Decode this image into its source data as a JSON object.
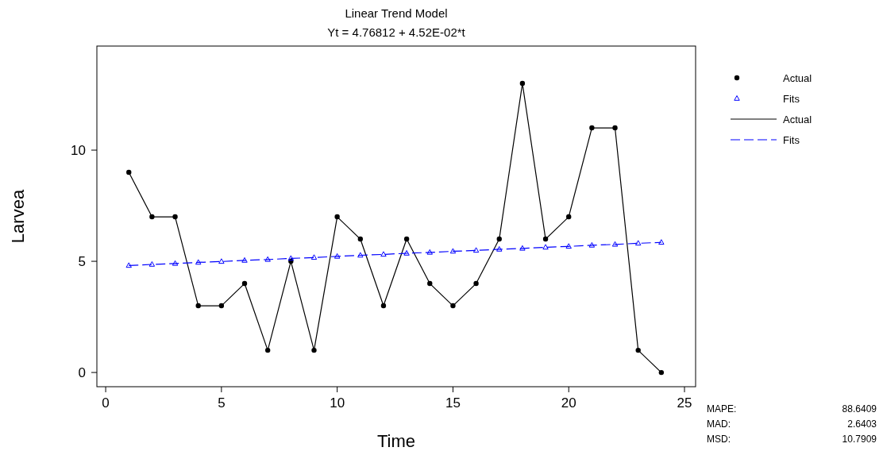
{
  "chart_data": {
    "type": "line",
    "title": "Linear Trend Model",
    "subtitle": "Yt = 4.76812 + 4.52E-02*t",
    "xlabel": "Time",
    "ylabel": "Larvea",
    "x": [
      1,
      2,
      3,
      4,
      5,
      6,
      7,
      8,
      9,
      10,
      11,
      12,
      13,
      14,
      15,
      16,
      17,
      18,
      19,
      20,
      21,
      22,
      23,
      24
    ],
    "series": [
      {
        "name": "Actual",
        "color": "#000000",
        "marker": "circle",
        "line_style": "solid",
        "values": [
          9,
          7,
          7,
          3,
          3,
          4,
          1,
          5,
          1,
          7,
          6,
          3,
          6,
          4,
          3,
          4,
          6,
          13,
          6,
          7,
          11,
          11,
          1,
          0
        ]
      },
      {
        "name": "Fits",
        "color": "#0000ff",
        "marker": "triangle",
        "line_style": "dashed",
        "values": [
          4.81,
          4.86,
          4.9,
          4.95,
          4.99,
          5.04,
          5.08,
          5.13,
          5.17,
          5.22,
          5.27,
          5.31,
          5.36,
          5.4,
          5.45,
          5.49,
          5.54,
          5.58,
          5.63,
          5.67,
          5.72,
          5.76,
          5.81,
          5.85
        ]
      }
    ],
    "xlim": [
      -0.38,
      25.48
    ],
    "xticks": [
      0,
      5,
      10,
      15,
      20,
      25
    ],
    "ylim": [
      -0.64,
      14.68
    ],
    "yticks": [
      0,
      5,
      10
    ],
    "grid": false,
    "legend": "top right",
    "annotations": [
      "MAPE:",
      "88.6409",
      "MAD:",
      "2.6403",
      "MSD:",
      "10.7909"
    ]
  }
}
